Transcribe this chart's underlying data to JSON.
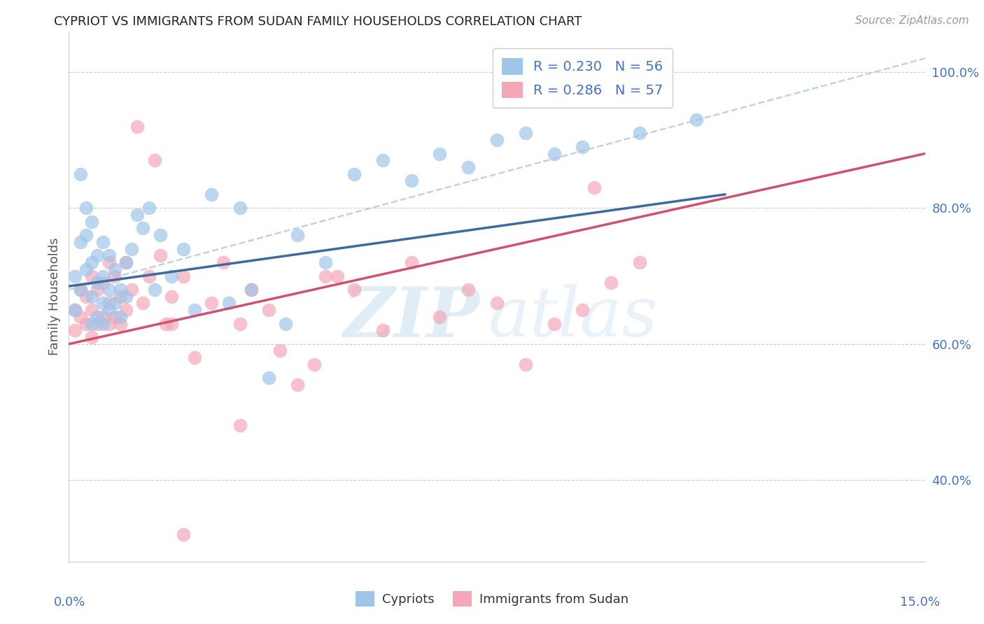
{
  "title": "CYPRIOT VS IMMIGRANTS FROM SUDAN FAMILY HOUSEHOLDS CORRELATION CHART",
  "source": "Source: ZipAtlas.com",
  "ylabel": "Family Households",
  "right_ytick_vals": [
    0.4,
    0.6,
    0.8,
    1.0
  ],
  "right_ytick_labels": [
    "40.0%",
    "60.0%",
    "80.0%",
    "100.0%"
  ],
  "xlim": [
    0.0,
    0.15
  ],
  "ylim": [
    0.28,
    1.06
  ],
  "cypriot_color": "#9fc5e8",
  "sudan_color": "#f4a7b9",
  "cypriot_trend_color": "#3d6b9e",
  "sudan_trend_color": "#d05070",
  "dashed_color": "#b8cfe0",
  "grid_color": "#cccccc",
  "label_color": "#4472c4",
  "title_color": "#222222",
  "source_color": "#999999",
  "watermark_zip": "ZIP",
  "watermark_atlas": "atlas",
  "cypriot_x": [
    0.001,
    0.001,
    0.002,
    0.002,
    0.002,
    0.003,
    0.003,
    0.003,
    0.004,
    0.004,
    0.004,
    0.004,
    0.005,
    0.005,
    0.005,
    0.006,
    0.006,
    0.006,
    0.006,
    0.007,
    0.007,
    0.007,
    0.008,
    0.008,
    0.009,
    0.009,
    0.01,
    0.01,
    0.011,
    0.012,
    0.013,
    0.014,
    0.015,
    0.016,
    0.018,
    0.02,
    0.022,
    0.025,
    0.028,
    0.03,
    0.032,
    0.035,
    0.038,
    0.04,
    0.045,
    0.05,
    0.055,
    0.06,
    0.065,
    0.07,
    0.075,
    0.08,
    0.085,
    0.09,
    0.1,
    0.11
  ],
  "cypriot_y": [
    0.65,
    0.7,
    0.68,
    0.75,
    0.85,
    0.71,
    0.76,
    0.8,
    0.63,
    0.67,
    0.72,
    0.78,
    0.64,
    0.69,
    0.73,
    0.63,
    0.66,
    0.7,
    0.75,
    0.65,
    0.68,
    0.73,
    0.66,
    0.71,
    0.64,
    0.68,
    0.67,
    0.72,
    0.74,
    0.79,
    0.77,
    0.8,
    0.68,
    0.76,
    0.7,
    0.74,
    0.65,
    0.82,
    0.66,
    0.8,
    0.68,
    0.55,
    0.63,
    0.76,
    0.72,
    0.85,
    0.87,
    0.84,
    0.88,
    0.86,
    0.9,
    0.91,
    0.88,
    0.89,
    0.91,
    0.93
  ],
  "sudan_x": [
    0.001,
    0.001,
    0.002,
    0.002,
    0.003,
    0.003,
    0.004,
    0.004,
    0.004,
    0.005,
    0.005,
    0.006,
    0.006,
    0.007,
    0.007,
    0.007,
    0.008,
    0.008,
    0.009,
    0.009,
    0.01,
    0.01,
    0.011,
    0.012,
    0.013,
    0.014,
    0.015,
    0.016,
    0.017,
    0.018,
    0.02,
    0.022,
    0.025,
    0.027,
    0.03,
    0.032,
    0.035,
    0.037,
    0.04,
    0.043,
    0.047,
    0.05,
    0.055,
    0.06,
    0.065,
    0.07,
    0.075,
    0.08,
    0.085,
    0.09,
    0.095,
    0.1,
    0.092,
    0.03,
    0.02,
    0.045,
    0.018
  ],
  "sudan_y": [
    0.62,
    0.65,
    0.64,
    0.68,
    0.63,
    0.67,
    0.61,
    0.65,
    0.7,
    0.63,
    0.68,
    0.64,
    0.69,
    0.63,
    0.66,
    0.72,
    0.64,
    0.7,
    0.63,
    0.67,
    0.72,
    0.65,
    0.68,
    0.92,
    0.66,
    0.7,
    0.87,
    0.73,
    0.63,
    0.67,
    0.7,
    0.58,
    0.66,
    0.72,
    0.63,
    0.68,
    0.65,
    0.59,
    0.54,
    0.57,
    0.7,
    0.68,
    0.62,
    0.72,
    0.64,
    0.68,
    0.66,
    0.57,
    0.63,
    0.65,
    0.69,
    0.72,
    0.83,
    0.48,
    0.32,
    0.7,
    0.63
  ],
  "cypriot_trend": [
    0.0,
    0.115,
    0.685,
    0.82
  ],
  "sudan_trend": [
    0.0,
    0.15,
    0.6,
    0.88
  ],
  "dashed_line": [
    0.0,
    0.15,
    0.68,
    1.02
  ]
}
